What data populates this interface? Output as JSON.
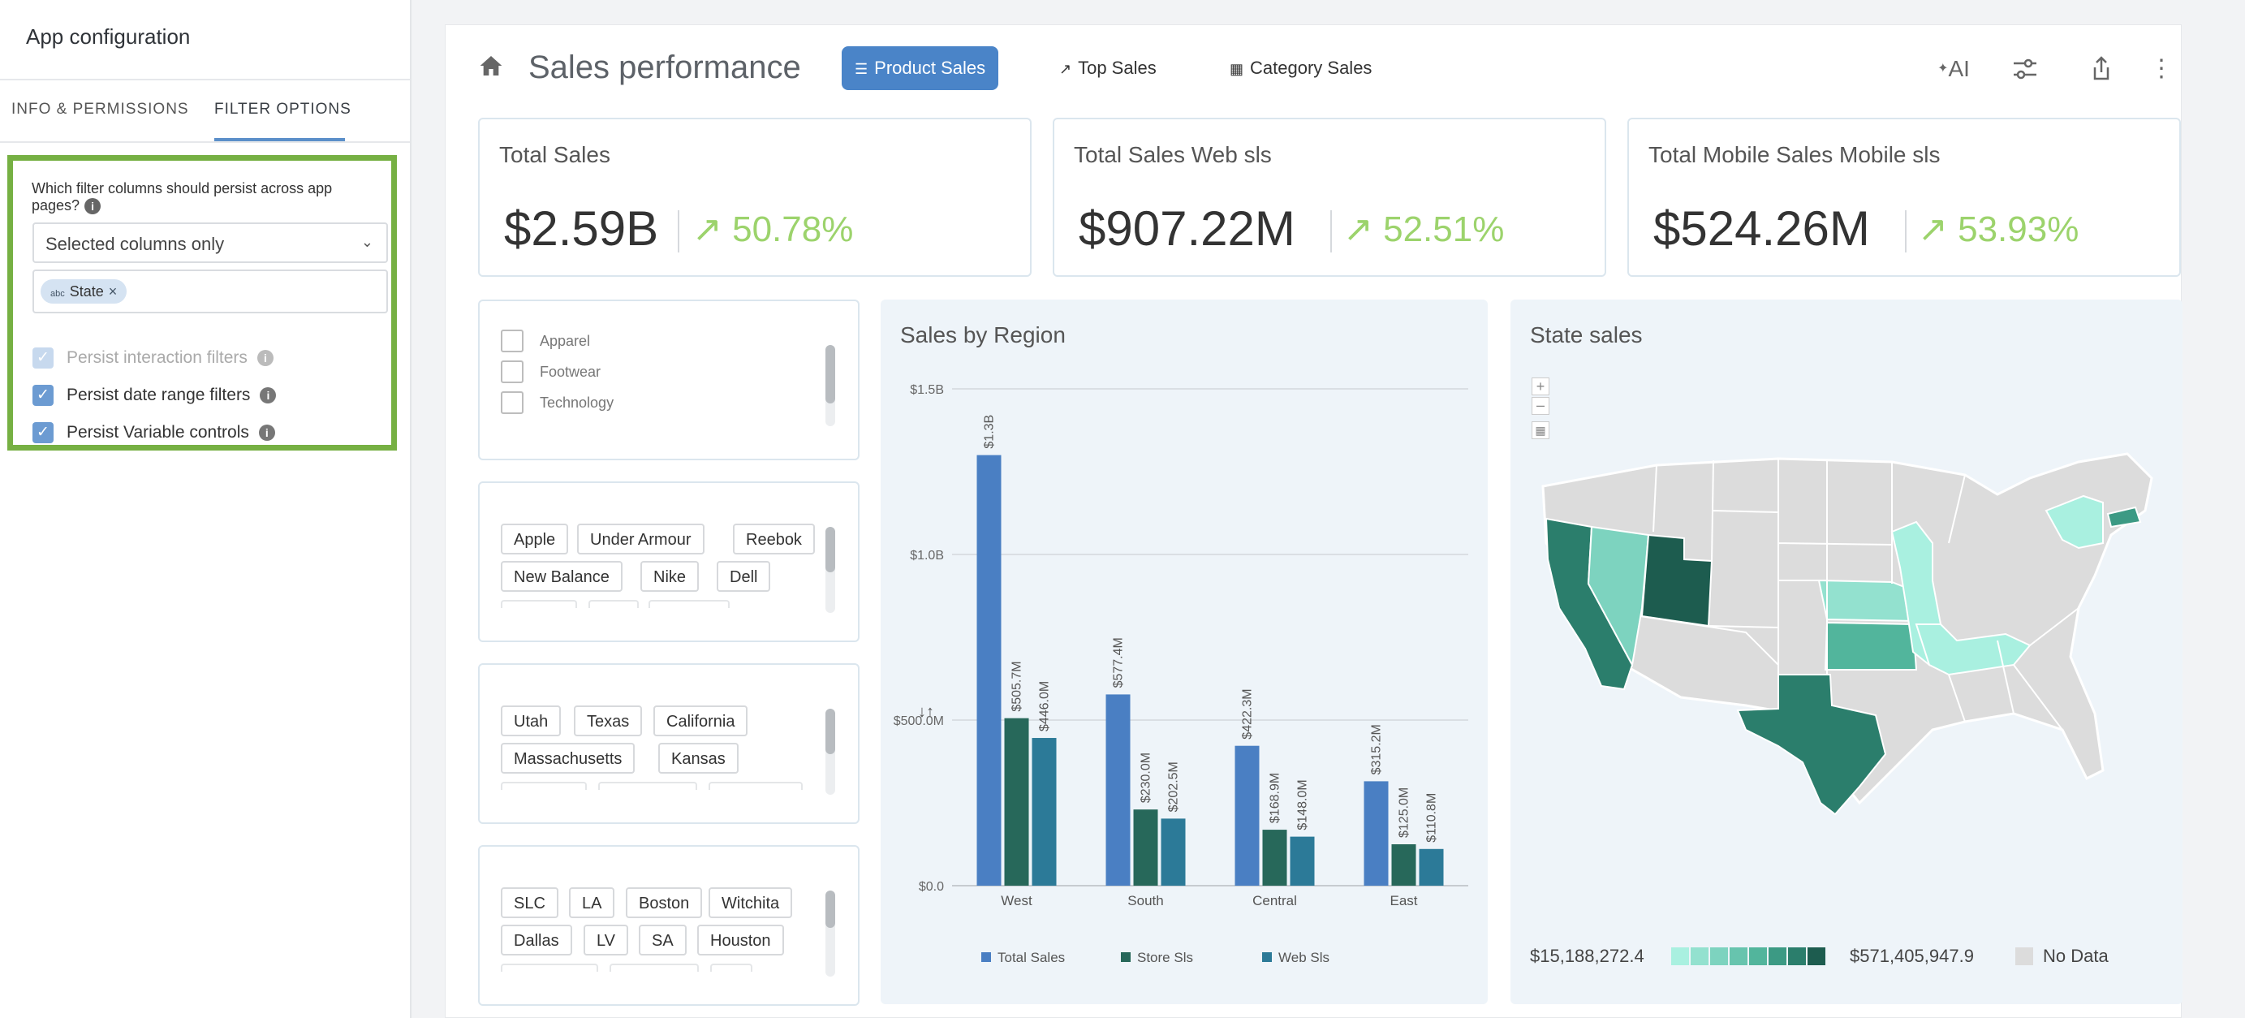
{
  "panel": {
    "title": "App configuration",
    "tabs": [
      "INFO & PERMISSIONS",
      "FILTER OPTIONS"
    ],
    "question": "Which filter columns should persist across app pages?",
    "dropdown_value": "Selected columns only",
    "chip_label": "State",
    "chip_type": "abc",
    "checks": [
      {
        "label": "Persist interaction filters",
        "checked": true,
        "disabled": true
      },
      {
        "label": "Persist date range filters",
        "checked": true,
        "disabled": false
      },
      {
        "label": "Persist Variable controls",
        "checked": true,
        "disabled": false
      }
    ]
  },
  "header": {
    "title": "Sales performance",
    "tabs": [
      {
        "label": "Product Sales",
        "active": true
      },
      {
        "label": "Top Sales",
        "active": false
      },
      {
        "label": "Category Sales",
        "active": false
      }
    ],
    "ai_label": "AI"
  },
  "kpis": [
    {
      "title": "Total Sales",
      "value": "$2.59B",
      "change": "50.78%"
    },
    {
      "title": "Total Sales Web sls",
      "value": "$907.22M",
      "change": "52.51%"
    },
    {
      "title": "Total Mobile Sales Mobile sls",
      "value": "$524.26M",
      "change": "53.93%"
    }
  ],
  "filters": {
    "categories": [
      "Apparel",
      "Footwear",
      "Technology"
    ],
    "brands": [
      "Apple",
      "Under Armour",
      "Reebok",
      "New Balance",
      "Nike",
      "Dell"
    ],
    "states": [
      "Utah",
      "Texas",
      "California",
      "Massachusetts",
      "Kansas"
    ],
    "cities": [
      "SLC",
      "LA",
      "Boston",
      "Witchita",
      "Dallas",
      "LV",
      "SA",
      "Houston"
    ]
  },
  "chart_data": {
    "type": "bar",
    "title": "Sales by Region",
    "categories": [
      "West",
      "South",
      "Central",
      "East"
    ],
    "series": [
      {
        "name": "Total Sales",
        "color": "#4a7fc3",
        "values": [
          1300000000,
          577400000,
          422300000,
          315200000
        ],
        "labels": [
          "$1.3B",
          "$577.4M",
          "$422.3M",
          "$315.2M"
        ]
      },
      {
        "name": "Store Sls",
        "color": "#27685a",
        "values": [
          505700000,
          230000000,
          168900000,
          125000000
        ],
        "labels": [
          "$505.7M",
          "$230.0M",
          "$168.9M",
          "$125.0M"
        ]
      },
      {
        "name": "Web Sls",
        "color": "#2c7a98",
        "values": [
          446000000,
          202500000,
          148000000,
          110800000
        ],
        "labels": [
          "$446.0M",
          "$202.5M",
          "$148.0M",
          "$110.8M"
        ]
      }
    ],
    "yticks": [
      "$0.0",
      "$500.0M",
      "$1.0B",
      "$1.5B"
    ],
    "ylim": [
      0,
      1500000000
    ],
    "grid": true,
    "legend": "bottom"
  },
  "map": {
    "title": "State sales",
    "legend_min": "$15,188,272.4",
    "legend_max": "$571,405,947.9",
    "no_data_label": "No Data",
    "colors": [
      "#a9f0e0",
      "#93e1cf",
      "#7dd3bf",
      "#67c4ae",
      "#52b59c",
      "#3c9a84",
      "#2b7e6c",
      "#1d5c4f"
    ]
  }
}
